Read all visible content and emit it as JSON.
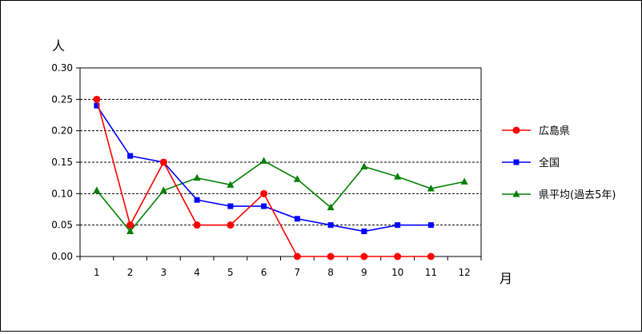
{
  "chart_data": {
    "type": "line",
    "title": "",
    "ylabel": "人",
    "xlabel": "月",
    "categories": [
      "1",
      "2",
      "3",
      "4",
      "5",
      "6",
      "7",
      "8",
      "9",
      "10",
      "11",
      "12"
    ],
    "ylim": [
      0,
      0.3
    ],
    "yticks": [
      "0.00",
      "0.05",
      "0.10",
      "0.15",
      "0.20",
      "0.25",
      "0.30"
    ],
    "grid": "horizontal dashed",
    "legend_position": "right",
    "series": [
      {
        "name": "広島県",
        "color": "#ff0000",
        "marker": "circle",
        "values": [
          0.25,
          0.05,
          0.15,
          0.05,
          0.05,
          0.1,
          0.0,
          0.0,
          0.0,
          0.0,
          0.0,
          null
        ]
      },
      {
        "name": "全国",
        "color": "#0000ff",
        "marker": "square",
        "values": [
          0.24,
          0.16,
          0.15,
          0.09,
          0.08,
          0.08,
          0.06,
          0.05,
          0.04,
          0.05,
          0.05,
          null
        ]
      },
      {
        "name": "県平均(過去5年)",
        "color": "#008000",
        "marker": "triangle",
        "values": [
          0.105,
          0.04,
          0.105,
          0.125,
          0.114,
          0.152,
          0.123,
          0.078,
          0.143,
          0.127,
          0.108,
          0.119
        ]
      }
    ]
  }
}
